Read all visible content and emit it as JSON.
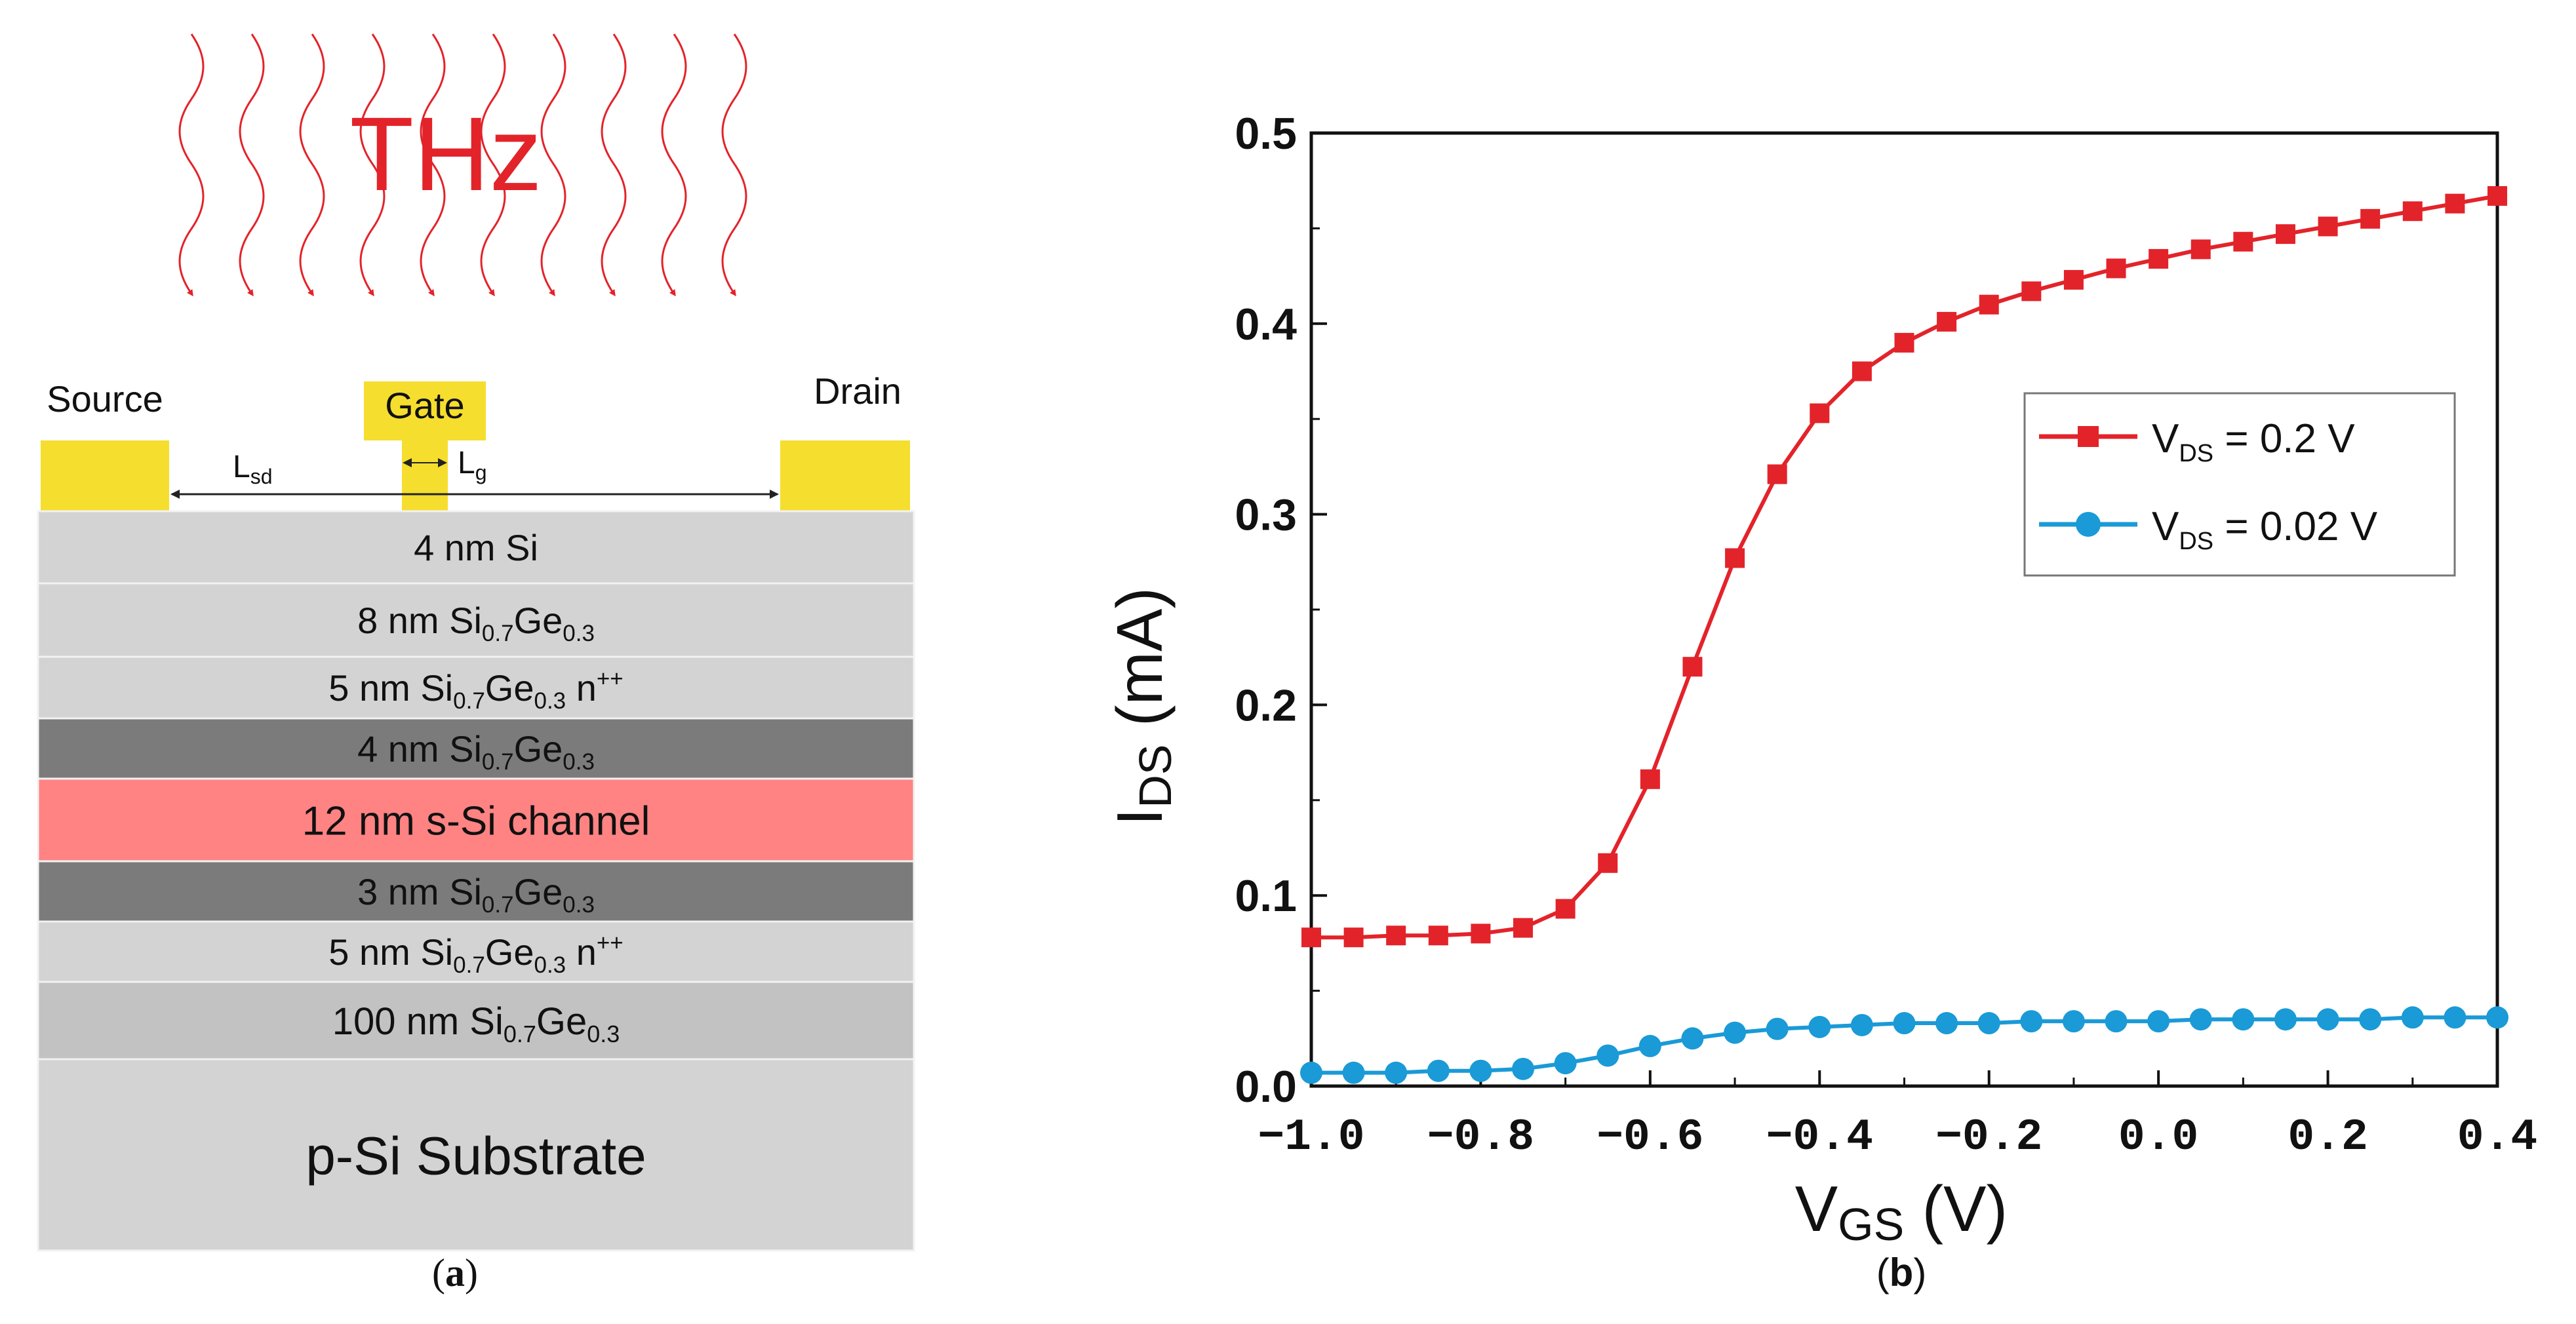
{
  "panel_a": {
    "caption_open": "(",
    "caption_letter": "a",
    "caption_close": ")",
    "thz_label": "THz",
    "source_label": "Source",
    "gate_label": "Gate",
    "drain_label": "Drain",
    "lsd_main": "L",
    "lsd_sub": "sd",
    "lg_main": "L",
    "lg_sub": "g",
    "colors": {
      "contact": "#f5de2e",
      "light_layer": "#d3d3d3",
      "dark_layer": "#7b7b7b",
      "channel": "#ff8383",
      "substrate": "#d3d3d3",
      "thz": "#e3232a"
    },
    "layers": [
      {
        "parts": [
          {
            "t": "4 nm Si"
          }
        ],
        "tone": "light"
      },
      {
        "parts": [
          {
            "t": "8 nm Si"
          },
          {
            "t": "0.7",
            "sub": true
          },
          {
            "t": "Ge"
          },
          {
            "t": "0.3",
            "sub": true
          }
        ],
        "tone": "light"
      },
      {
        "parts": [
          {
            "t": "5 nm Si"
          },
          {
            "t": "0.7",
            "sub": true
          },
          {
            "t": "Ge"
          },
          {
            "t": "0.3",
            "sub": true
          },
          {
            "t": " n"
          },
          {
            "t": "++",
            "sup": true
          }
        ],
        "tone": "light"
      },
      {
        "parts": [
          {
            "t": "4 nm Si"
          },
          {
            "t": "0.7",
            "sub": true
          },
          {
            "t": "Ge"
          },
          {
            "t": "0.3",
            "sub": true
          }
        ],
        "tone": "dark"
      },
      {
        "parts": [
          {
            "t": "12 nm s-Si channel"
          }
        ],
        "tone": "channel"
      },
      {
        "parts": [
          {
            "t": "3 nm Si"
          },
          {
            "t": "0.7",
            "sub": true
          },
          {
            "t": "Ge"
          },
          {
            "t": "0.3",
            "sub": true
          }
        ],
        "tone": "dark"
      },
      {
        "parts": [
          {
            "t": "5 nm Si"
          },
          {
            "t": "0.7",
            "sub": true
          },
          {
            "t": "Ge"
          },
          {
            "t": "0.3",
            "sub": true
          },
          {
            "t": " n"
          },
          {
            "t": "++",
            "sup": true
          }
        ],
        "tone": "light"
      },
      {
        "parts": [
          {
            "t": "100 nm Si"
          },
          {
            "t": "0.7",
            "sub": true
          },
          {
            "t": "Ge"
          },
          {
            "t": "0.3",
            "sub": true
          }
        ],
        "tone": "mid"
      },
      {
        "parts": [
          {
            "t": "p-Si Substrate"
          }
        ],
        "tone": "substrate"
      }
    ]
  },
  "panel_b": {
    "caption_open": "(",
    "caption_letter": "b",
    "caption_close": ")",
    "chart_data": {
      "type": "line",
      "title": "",
      "xlabel_main": "V",
      "xlabel_sub": "GS",
      "xlabel_unit": " (V)",
      "ylabel_main": "I",
      "ylabel_sub": "DS",
      "ylabel_unit": " (mA)",
      "xlim": [
        -1.0,
        0.4
      ],
      "ylim": [
        0.0,
        0.5
      ],
      "xticks": [
        -1.0,
        -0.8,
        -0.6,
        -0.4,
        -0.2,
        0.0,
        0.2,
        0.4
      ],
      "xtick_labels": [
        "−1.0",
        "−0.8",
        "−0.6",
        "−0.4",
        "−0.2",
        "0.0",
        "0.2",
        "0.4"
      ],
      "yticks": [
        0.0,
        0.1,
        0.2,
        0.3,
        0.4,
        0.5
      ],
      "ytick_labels": [
        "0.0",
        "0.1",
        "0.2",
        "0.3",
        "0.4",
        "0.5"
      ],
      "grid": false,
      "legend_position": "right-middle",
      "x": [
        -1.0,
        -0.95,
        -0.9,
        -0.85,
        -0.8,
        -0.75,
        -0.7,
        -0.65,
        -0.6,
        -0.55,
        -0.5,
        -0.45,
        -0.4,
        -0.35,
        -0.3,
        -0.25,
        -0.2,
        -0.15,
        -0.1,
        -0.05,
        0.0,
        0.05,
        0.1,
        0.15,
        0.2,
        0.25,
        0.3,
        0.35,
        0.4
      ],
      "series": [
        {
          "name_main": "V",
          "name_sub": "DS",
          "name_rest": " = 0.2 V",
          "color": "#e3232a",
          "marker": "square",
          "values": [
            0.078,
            0.078,
            0.079,
            0.079,
            0.08,
            0.083,
            0.093,
            0.117,
            0.161,
            0.22,
            0.277,
            0.321,
            0.353,
            0.375,
            0.39,
            0.401,
            0.41,
            0.417,
            0.423,
            0.429,
            0.434,
            0.439,
            0.443,
            0.447,
            0.451,
            0.455,
            0.459,
            0.463,
            0.467
          ]
        },
        {
          "name_main": "V",
          "name_sub": "DS",
          "name_rest": " = 0.02 V",
          "color": "#1a9ad6",
          "marker": "circle",
          "values": [
            0.007,
            0.007,
            0.007,
            0.008,
            0.008,
            0.009,
            0.012,
            0.016,
            0.021,
            0.025,
            0.028,
            0.03,
            0.031,
            0.032,
            0.033,
            0.033,
            0.033,
            0.034,
            0.034,
            0.034,
            0.034,
            0.035,
            0.035,
            0.035,
            0.035,
            0.035,
            0.036,
            0.036,
            0.036
          ]
        }
      ]
    }
  }
}
